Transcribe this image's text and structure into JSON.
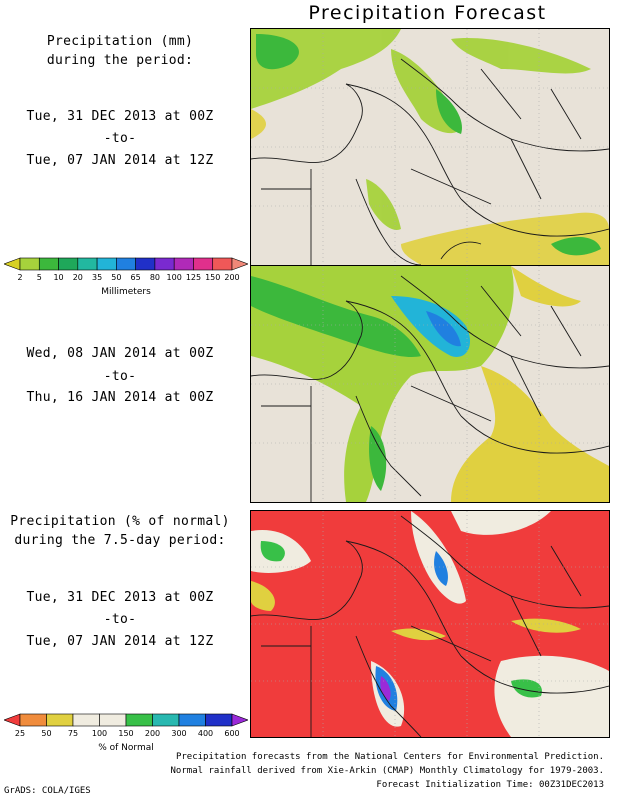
{
  "title": "Precipitation Forecast",
  "panel1": {
    "heading_line1": "Precipitation (mm)",
    "heading_line2": "during the period:",
    "start": "Tue, 31 DEC 2013 at 00Z",
    "sep": "-to-",
    "end": "Tue, 07 JAN 2014 at 12Z"
  },
  "panel2": {
    "start": "Wed, 08 JAN 2014 at 00Z",
    "sep": "-to-",
    "end": "Thu, 16 JAN 2014 at 00Z"
  },
  "panel3": {
    "heading_line1": "Precipitation (% of normal)",
    "heading_line2": "during the 7.5-day period:",
    "start": "Tue, 31 DEC 2013 at 00Z",
    "sep": "-to-",
    "end": "Tue, 07 JAN 2014 at 12Z"
  },
  "legend_mm": {
    "labels": [
      "2",
      "5",
      "10",
      "20",
      "35",
      "50",
      "65",
      "80",
      "100",
      "125",
      "150",
      "200"
    ],
    "colors": [
      "#d8d024",
      "#a6d23c",
      "#3cb83c",
      "#1fa85a",
      "#22b8a0",
      "#22b4d8",
      "#2080e0",
      "#2030c8",
      "#7a2ad0",
      "#b02ab8",
      "#e0308c",
      "#f05858",
      "#f08878"
    ],
    "unit": "Millimeters"
  },
  "legend_pct": {
    "labels": [
      "25",
      "50",
      "75",
      "100",
      "150",
      "200",
      "300",
      "400",
      "600"
    ],
    "colors": [
      "#f03c3c",
      "#f08c3c",
      "#e0d040",
      "#f0ece0",
      "#f0ece0",
      "#38c048",
      "#28b8b0",
      "#2080e0",
      "#2030c8",
      "#9a2ad8"
    ],
    "unit": "% of Normal"
  },
  "footer": {
    "line1": "Precipitation forecasts from the National Centers for Environmental Prediction.",
    "line2": "Normal rainfall derived from Xie-Arkin (CMAP) Monthly Climatology for 1979-2003.",
    "line3": "Forecast Initialization Time: 00Z31DEC2013",
    "credit": "GrADS: COLA/IGES"
  }
}
